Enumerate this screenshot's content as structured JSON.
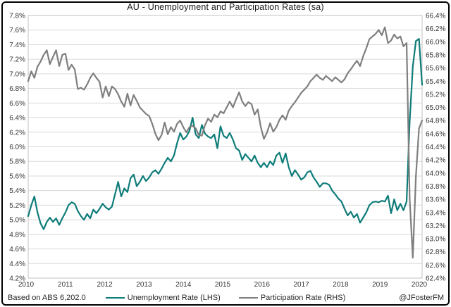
{
  "title": "AU - Unemployment  and Participation Rates (sa)",
  "footer": {
    "left": "Based on ABS 6,202.0",
    "right": "@JFosterFM"
  },
  "legend": [
    {
      "label": "Unemployment Rate (LHS)",
      "color": "#0e7c79"
    },
    {
      "label": "Participation Rate (RHS)",
      "color": "#7f7f7f"
    }
  ],
  "colors": {
    "unemployment_line": "#0e7c79",
    "participation_line": "#7f7f7f",
    "gridline": "#d9d9d9",
    "plot_frame": "#c0c0c0",
    "tick_text": "#333333",
    "border": "#000000"
  },
  "chart_data": {
    "type": "line",
    "title": "AU - Unemployment and Participation Rates (sa)",
    "frequency": "monthly",
    "x_start": "2010-01",
    "x_end": "2020-08",
    "x_tick_labels": [
      "2010",
      "2011",
      "2012",
      "2013",
      "2014",
      "2015",
      "2016",
      "2017",
      "2018",
      "2019",
      "2020"
    ],
    "axes": {
      "left": {
        "min": 4.2,
        "max": 7.8,
        "step": 0.2,
        "suffix": "%"
      },
      "right": {
        "min": 62.4,
        "max": 66.4,
        "step": 0.2,
        "suffix": "%"
      }
    },
    "grid": "horizontal",
    "legend_position": "bottom",
    "series": [
      {
        "name": "Unemployment Rate (LHS)",
        "axis": "left",
        "color": "#0e7c79",
        "values": [
          5.05,
          5.2,
          5.32,
          5.1,
          4.95,
          4.87,
          4.97,
          5.03,
          4.97,
          5.02,
          4.93,
          5.02,
          5.1,
          5.2,
          5.24,
          5.22,
          5.12,
          5.05,
          5.0,
          5.08,
          5.02,
          5.14,
          5.09,
          5.15,
          5.22,
          5.17,
          5.14,
          5.18,
          5.35,
          5.52,
          5.32,
          5.43,
          5.38,
          5.57,
          5.62,
          5.46,
          5.52,
          5.6,
          5.53,
          5.58,
          5.65,
          5.68,
          5.63,
          5.7,
          5.78,
          5.85,
          5.8,
          5.88,
          6.05,
          6.19,
          6.1,
          6.14,
          6.22,
          6.4,
          6.17,
          6.12,
          6.3,
          6.18,
          6.14,
          6.12,
          6.17,
          5.98,
          6.28,
          6.15,
          6.12,
          6.19,
          6.1,
          5.98,
          5.95,
          5.82,
          5.9,
          5.85,
          5.8,
          5.88,
          5.78,
          5.72,
          5.78,
          5.72,
          5.8,
          5.75,
          5.88,
          5.92,
          5.78,
          5.91,
          5.72,
          5.6,
          5.68,
          5.62,
          5.55,
          5.58,
          5.65,
          5.67,
          5.58,
          5.52,
          5.45,
          5.5,
          5.5,
          5.48,
          5.4,
          5.35,
          5.29,
          5.25,
          5.15,
          5.06,
          5.11,
          5.03,
          5.08,
          4.96,
          5.03,
          5.1,
          5.2,
          5.24,
          5.25,
          5.24,
          5.26,
          5.25,
          5.33,
          5.09,
          5.28,
          5.13,
          5.22,
          5.13,
          5.25,
          6.35,
          7.1,
          7.45,
          7.48,
          6.85
        ]
      },
      {
        "name": "Participation Rate (RHS)",
        "axis": "right",
        "color": "#7f7f7f",
        "values": [
          65.4,
          65.55,
          65.45,
          65.62,
          65.7,
          65.8,
          65.87,
          65.66,
          65.77,
          65.87,
          65.63,
          65.8,
          65.82,
          65.57,
          65.65,
          65.58,
          65.28,
          65.3,
          65.27,
          65.35,
          65.45,
          65.52,
          65.45,
          65.39,
          65.15,
          65.32,
          65.17,
          65.32,
          65.28,
          65.2,
          65.09,
          65.01,
          65.21,
          65.03,
          65.19,
          65.1,
          65.0,
          64.95,
          64.9,
          64.87,
          64.75,
          64.6,
          64.5,
          64.58,
          64.77,
          64.59,
          64.7,
          64.63,
          64.75,
          64.8,
          64.7,
          64.62,
          64.7,
          64.72,
          64.68,
          64.58,
          64.57,
          64.73,
          64.83,
          64.78,
          64.89,
          64.85,
          64.94,
          64.91,
          65.0,
          65.09,
          65.0,
          65.12,
          65.23,
          65.09,
          65.02,
          65.08,
          65.05,
          64.89,
          64.97,
          64.7,
          64.52,
          64.62,
          64.76,
          64.63,
          64.7,
          64.81,
          64.88,
          64.81,
          64.95,
          65.02,
          65.08,
          65.15,
          65.22,
          65.27,
          65.32,
          65.4,
          65.45,
          65.5,
          65.45,
          65.42,
          65.48,
          65.44,
          65.4,
          65.46,
          65.42,
          65.38,
          65.43,
          65.52,
          65.58,
          65.65,
          65.71,
          65.63,
          65.78,
          65.9,
          66.04,
          66.08,
          66.12,
          66.18,
          66.1,
          66.22,
          65.98,
          66.02,
          66.11,
          66.05,
          66.08,
          65.93,
          65.98,
          63.6,
          62.71,
          63.95,
          64.68,
          64.8
        ]
      }
    ]
  }
}
